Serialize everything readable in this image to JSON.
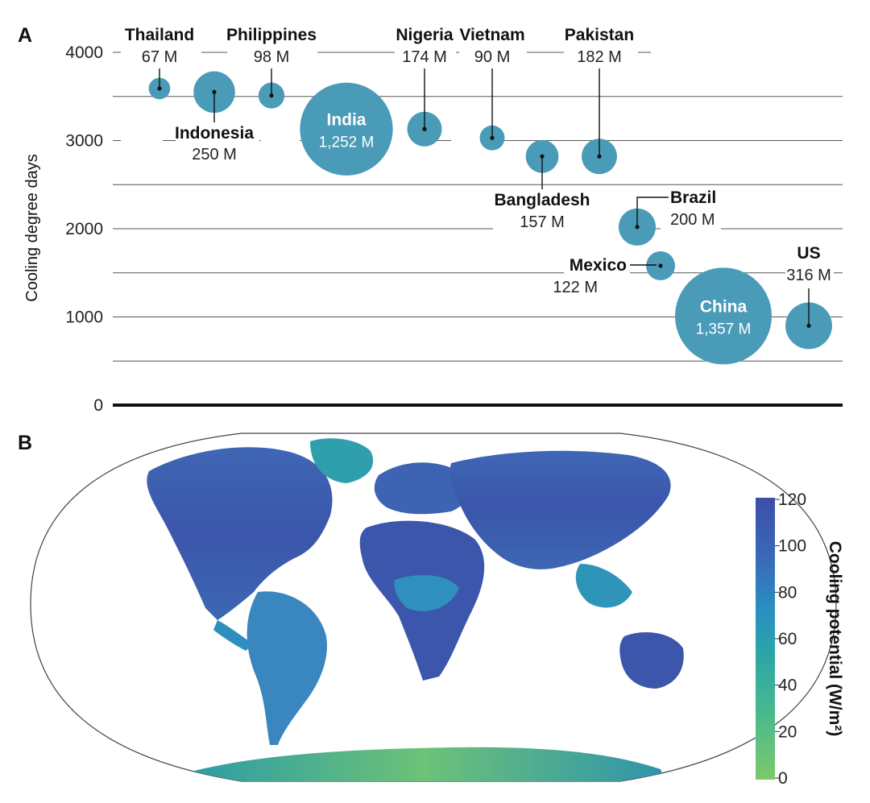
{
  "chart_data": [
    {
      "type": "scatter",
      "panel": "A",
      "ylabel": "Cooling degree days",
      "ylim": [
        0,
        4000
      ],
      "yticks": [
        0,
        1000,
        2000,
        3000,
        4000
      ],
      "grid": true,
      "bubble_color": "#4a9bb8",
      "points": [
        {
          "name": "Thailand",
          "pop_label": "67 M",
          "population": 67,
          "cdd": 3590
        },
        {
          "name": "Indonesia",
          "pop_label": "250 M",
          "population": 250,
          "cdd": 3550
        },
        {
          "name": "Philippines",
          "pop_label": "98 M",
          "population": 98,
          "cdd": 3510
        },
        {
          "name": "India",
          "pop_label": "1,252 M",
          "population": 1252,
          "cdd": 3130
        },
        {
          "name": "Nigeria",
          "pop_label": "174 M",
          "population": 174,
          "cdd": 3130
        },
        {
          "name": "Vietnam",
          "pop_label": "90 M",
          "population": 90,
          "cdd": 3030
        },
        {
          "name": "Bangladesh",
          "pop_label": "157 M",
          "population": 157,
          "cdd": 2820
        },
        {
          "name": "Pakistan",
          "pop_label": "182 M",
          "population": 182,
          "cdd": 2820
        },
        {
          "name": "Brazil",
          "pop_label": "200 M",
          "population": 200,
          "cdd": 2020
        },
        {
          "name": "Mexico",
          "pop_label": "122 M",
          "population": 122,
          "cdd": 1580
        },
        {
          "name": "China",
          "pop_label": "1,357 M",
          "population": 1357,
          "cdd": 1010
        },
        {
          "name": "US",
          "pop_label": "316 M",
          "population": 316,
          "cdd": 900
        }
      ]
    },
    {
      "type": "heatmap",
      "panel": "B",
      "colorbar_label": "Cooling potential (W/m²)",
      "colorbar_range": [
        0,
        120
      ],
      "colorbar_ticks": [
        0,
        20,
        40,
        60,
        80,
        100,
        120
      ],
      "colorbar_colors": [
        "#7cc96b",
        "#46b88f",
        "#2ba5a6",
        "#2a8fc1",
        "#3a67b8",
        "#3b4fa8"
      ]
    }
  ]
}
